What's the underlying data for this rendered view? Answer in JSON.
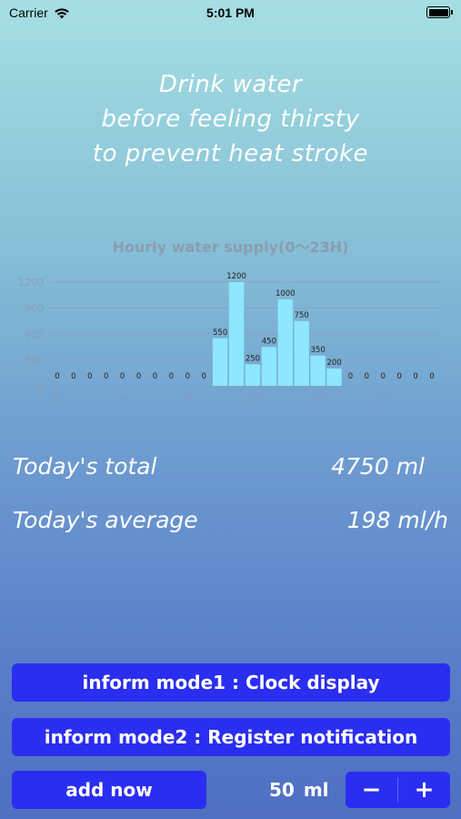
{
  "status_bar": {
    "carrier": "Carrier",
    "time": "5:01 PM"
  },
  "headline": [
    "Drink water",
    "before feeling thirsty",
    "to prevent heat stroke"
  ],
  "chart_title": "Hourly water supply(0～23H)",
  "chart_data": {
    "type": "bar",
    "title": "Hourly water supply(0～23H)",
    "x": [
      0,
      1,
      2,
      3,
      4,
      5,
      6,
      7,
      8,
      9,
      10,
      11,
      12,
      13,
      14,
      15,
      16,
      17,
      18,
      19,
      20,
      21,
      22,
      23
    ],
    "values": [
      0,
      0,
      0,
      0,
      0,
      0,
      0,
      0,
      0,
      0,
      550,
      1200,
      250,
      450,
      1000,
      750,
      350,
      200,
      0,
      0,
      0,
      0,
      0,
      0
    ],
    "y_ticks": [
      0,
      300,
      600,
      900,
      1200
    ],
    "x_ticks": [
      0,
      4,
      8,
      12,
      16,
      20
    ],
    "ylim": [
      0,
      1200
    ],
    "grid": true,
    "color": "#8ee6ff"
  },
  "stats": {
    "total_label": "Today's total",
    "total_value": "4750 ml",
    "average_label": "Today's average",
    "average_value": "198 ml/h"
  },
  "buttons": {
    "mode1": "inform mode1 : Clock display",
    "mode2": "inform mode2 : Register notification",
    "add": "add now"
  },
  "amount": {
    "value": "50",
    "unit": "ml"
  },
  "stepper": {
    "minus": "−",
    "plus": "+"
  }
}
